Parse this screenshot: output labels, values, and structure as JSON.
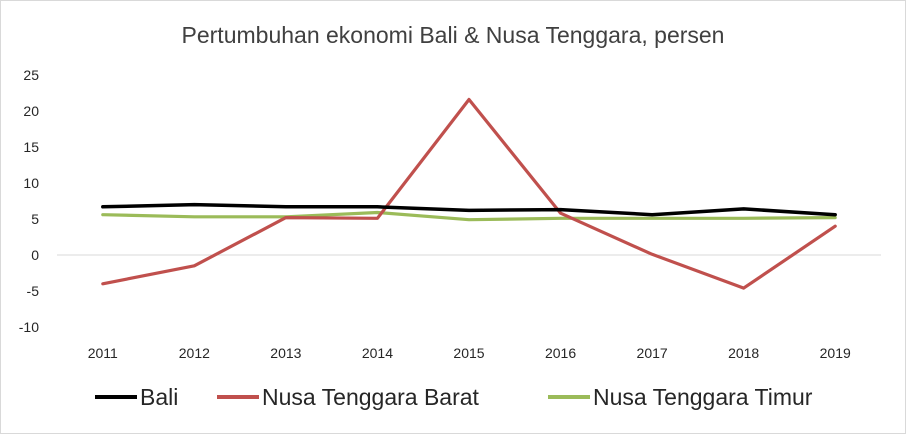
{
  "chart_data": {
    "type": "line",
    "title": "Pertumbuhan ekonomi Bali & Nusa Tenggara, persen",
    "xlabel": "",
    "ylabel": "",
    "categories": [
      "2011",
      "2012",
      "2013",
      "2014",
      "2015",
      "2016",
      "2017",
      "2018",
      "2019"
    ],
    "ylim": [
      -10,
      25
    ],
    "yticks": [
      25,
      20,
      15,
      10,
      5,
      0,
      -5,
      -10
    ],
    "grid": false,
    "legend_position": "bottom",
    "series": [
      {
        "name": "Bali",
        "color": "#000000",
        "values": [
          6.7,
          7.0,
          6.7,
          6.7,
          6.2,
          6.3,
          5.6,
          6.4,
          5.6
        ]
      },
      {
        "name": "Nusa Tenggara Barat",
        "color": "#c0504d",
        "values": [
          -4.0,
          -1.5,
          5.2,
          5.1,
          21.6,
          5.8,
          0.1,
          -4.6,
          4.0
        ]
      },
      {
        "name": "Nusa Tenggara Timur",
        "color": "#9bbb59",
        "values": [
          5.6,
          5.3,
          5.3,
          5.9,
          4.9,
          5.1,
          5.1,
          5.1,
          5.2
        ]
      }
    ]
  }
}
